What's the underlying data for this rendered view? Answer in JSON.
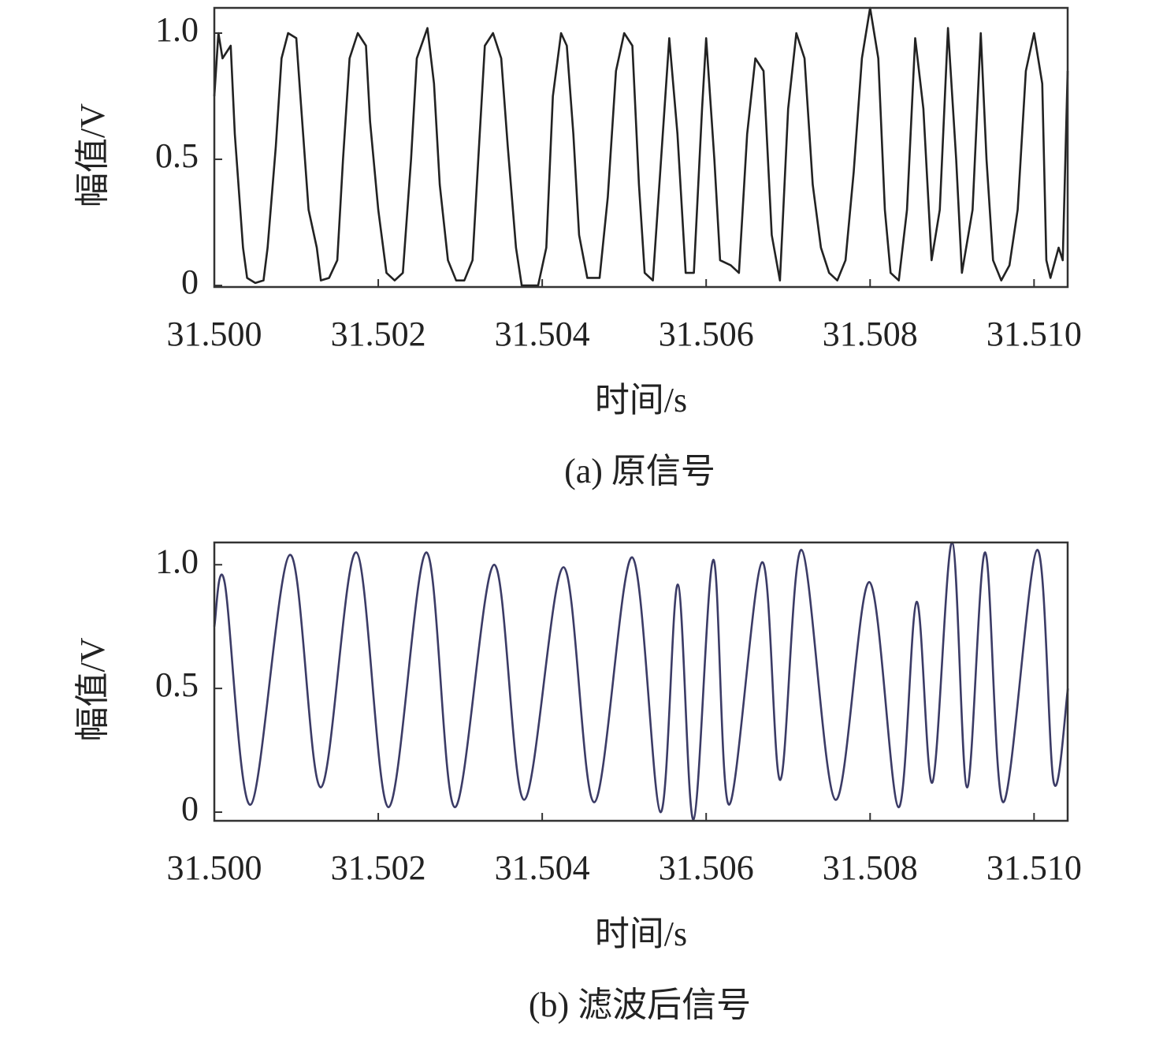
{
  "chart_data": [
    {
      "type": "line",
      "caption": "(a) 原信号",
      "x_label": "时间/s",
      "y_label": "幅值/V",
      "xlim": [
        31.5,
        31.51041
      ],
      "ylim": [
        -0.006,
        1.1
      ],
      "xticks": [
        {
          "value": 31.5,
          "label": "31.500"
        },
        {
          "value": 31.502,
          "label": "31.502"
        },
        {
          "value": 31.504,
          "label": "31.504"
        },
        {
          "value": 31.506,
          "label": "31.506"
        },
        {
          "value": 31.508,
          "label": "31.508"
        },
        {
          "value": 31.51,
          "label": "31.510"
        }
      ],
      "yticks": [
        0,
        0.5,
        {
          "value": 1,
          "label": "1.0"
        }
      ],
      "series": [
        {
          "color": "#222222",
          "smooth": false,
          "x": [
            31.5,
            31.50005,
            31.5001,
            31.5002,
            31.50025,
            31.50035,
            31.5004,
            31.5005,
            31.5006,
            31.50065,
            31.50075,
            31.50082,
            31.5009,
            31.501,
            31.50105,
            31.50115,
            31.50125,
            31.5013,
            31.5014,
            31.5015,
            31.50157,
            31.50165,
            31.50175,
            31.50185,
            31.5019,
            31.502,
            31.5021,
            31.5022,
            31.5023,
            31.5024,
            31.50247,
            31.5026,
            31.50268,
            31.50275,
            31.50285,
            31.50295,
            31.50305,
            31.50315,
            31.50322,
            31.5033,
            31.5034,
            31.5035,
            31.50358,
            31.50368,
            31.50375,
            31.50395,
            31.50405,
            31.50413,
            31.50423,
            31.5043,
            31.50438,
            31.50445,
            31.50455,
            31.5047,
            31.5048,
            31.5049,
            31.505,
            31.5051,
            31.50518,
            31.50525,
            31.50535,
            31.50545,
            31.50555,
            31.50565,
            31.50575,
            31.50585,
            31.50595,
            31.506,
            31.5061,
            31.50617,
            31.5063,
            31.5064,
            31.5065,
            31.5066,
            31.5067,
            31.5068,
            31.5069,
            31.507,
            31.5071,
            31.5072,
            31.5073,
            31.5074,
            31.5075,
            31.5076,
            31.5077,
            31.5078,
            31.5079,
            31.508,
            31.5081,
            31.50818,
            31.50825,
            31.50835,
            31.50845,
            31.50855,
            31.50865,
            31.50875,
            31.50885,
            31.50895,
            31.50905,
            31.50912,
            31.50925,
            31.50935,
            31.50942,
            31.5095,
            31.5096,
            31.5097,
            31.5098,
            31.5099,
            31.51,
            31.5101,
            31.51015,
            31.5102,
            31.5103,
            31.51035,
            31.51041
          ],
          "values": [
            0.75,
            1.0,
            0.9,
            0.95,
            0.6,
            0.15,
            0.03,
            0.01,
            0.02,
            0.15,
            0.55,
            0.9,
            1.0,
            0.98,
            0.75,
            0.3,
            0.15,
            0.02,
            0.03,
            0.1,
            0.5,
            0.9,
            1.0,
            0.95,
            0.65,
            0.3,
            0.05,
            0.02,
            0.05,
            0.5,
            0.9,
            1.02,
            0.8,
            0.4,
            0.1,
            0.02,
            0.02,
            0.1,
            0.5,
            0.95,
            1.0,
            0.9,
            0.55,
            0.15,
            0.0,
            0.0,
            0.15,
            0.75,
            1.0,
            0.95,
            0.6,
            0.2,
            0.03,
            0.03,
            0.35,
            0.85,
            1.0,
            0.95,
            0.4,
            0.05,
            0.02,
            0.5,
            0.98,
            0.6,
            0.05,
            0.05,
            0.7,
            0.98,
            0.5,
            0.1,
            0.08,
            0.05,
            0.6,
            0.9,
            0.85,
            0.2,
            0.02,
            0.7,
            1.0,
            0.9,
            0.4,
            0.15,
            0.05,
            0.02,
            0.1,
            0.45,
            0.9,
            1.1,
            0.9,
            0.3,
            0.05,
            0.02,
            0.3,
            0.98,
            0.7,
            0.1,
            0.3,
            1.02,
            0.5,
            0.05,
            0.3,
            1.0,
            0.5,
            0.1,
            0.02,
            0.08,
            0.3,
            0.85,
            1.0,
            0.8,
            0.1,
            0.03,
            0.15,
            0.1,
            0.85
          ]
        }
      ]
    },
    {
      "type": "line",
      "caption": "(b) 滤波后信号",
      "x_label": "时间/s",
      "y_label": "幅值/V",
      "xlim": [
        31.5,
        31.51041
      ],
      "ylim": [
        -0.035,
        1.09
      ],
      "xticks": [
        {
          "value": 31.5,
          "label": "31.500"
        },
        {
          "value": 31.502,
          "label": "31.502"
        },
        {
          "value": 31.504,
          "label": "31.504"
        },
        {
          "value": 31.506,
          "label": "31.506"
        },
        {
          "value": 31.508,
          "label": "31.508"
        },
        {
          "value": 31.51,
          "label": "31.510"
        }
      ],
      "yticks": [
        0,
        0.5,
        {
          "value": 1,
          "label": "1.0"
        }
      ],
      "series": [
        {
          "color": "#3b3b66",
          "smooth": true,
          "x": [
            31.5,
            31.500125,
            31.500442,
            31.500923,
            31.501298,
            31.501731,
            31.502125,
            31.502587,
            31.502933,
            31.503413,
            31.503779,
            31.50426,
            31.504635,
            31.505096,
            31.505442,
            31.505654,
            31.505846,
            31.506087,
            31.506279,
            31.506683,
            31.506904,
            31.507163,
            31.507577,
            31.50799,
            31.508346,
            31.508567,
            31.50876,
            31.509,
            31.509183,
            31.509404,
            31.509625,
            31.510038,
            31.51024,
            31.510413
          ],
          "values": [
            0.75,
            0.93,
            0.03,
            1.04,
            0.1,
            1.05,
            0.02,
            1.05,
            0.02,
            1.0,
            0.05,
            0.99,
            0.04,
            1.03,
            0.0,
            0.92,
            -0.03,
            1.02,
            0.03,
            1.01,
            0.13,
            1.06,
            0.05,
            0.93,
            0.02,
            0.85,
            0.12,
            1.09,
            0.1,
            1.05,
            0.04,
            1.06,
            0.12,
            0.5
          ]
        }
      ]
    }
  ]
}
